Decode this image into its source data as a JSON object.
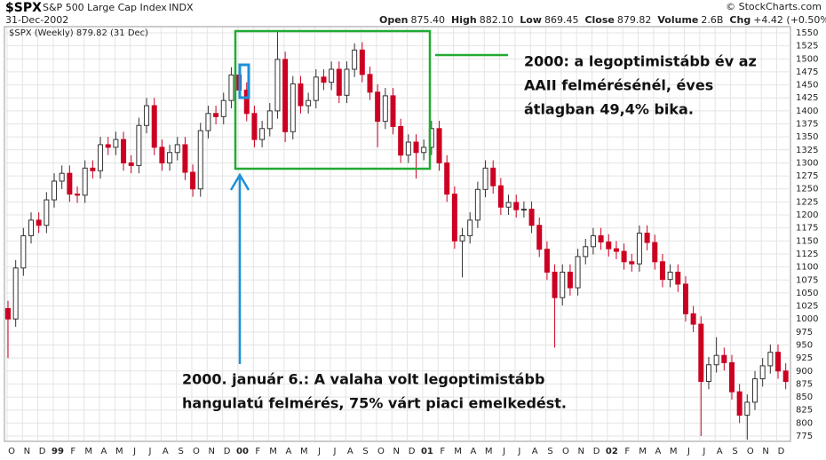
{
  "header": {
    "symbol": "$SPX",
    "name": "S&P 500 Large Cap Index",
    "exchange": "INDX",
    "date": "31-Dec-2002",
    "credit": "© StockCharts.com",
    "quote": [
      {
        "label": "Open",
        "value": "875.40"
      },
      {
        "label": "High",
        "value": "882.10"
      },
      {
        "label": "Low",
        "value": "869.45"
      },
      {
        "label": "Close",
        "value": "879.82"
      },
      {
        "label": "Volume",
        "value": "2.6B"
      },
      {
        "label": "Chg",
        "value": "+4.42 (+0.50%)"
      }
    ],
    "legend": "$SPX (Weekly) 879.82 (31 Dec)"
  },
  "chart_data": {
    "type": "candlestick",
    "x_labels": [
      "O",
      "N",
      "D",
      "99",
      "F",
      "M",
      "A",
      "M",
      "J",
      "J",
      "A",
      "S",
      "O",
      "N",
      "D",
      "00",
      "F",
      "M",
      "A",
      "M",
      "J",
      "J",
      "A",
      "S",
      "O",
      "N",
      "D",
      "01",
      "F",
      "M",
      "A",
      "M",
      "J",
      "J",
      "A",
      "S",
      "O",
      "N",
      "D",
      "02",
      "F",
      "M",
      "A",
      "M",
      "J",
      "J",
      "A",
      "S",
      "O",
      "N",
      "D"
    ],
    "open": [
      1020,
      1000,
      1098,
      1160,
      1190,
      1180,
      1229,
      1265,
      1280,
      1240,
      1238,
      1290,
      1285,
      1335,
      1330,
      1345,
      1300,
      1295,
      1372,
      1410,
      1330,
      1300,
      1320,
      1335,
      1282,
      1250,
      1362,
      1395,
      1389,
      1420,
      1469,
      1440,
      1395,
      1345,
      1366,
      1400,
      1499,
      1360,
      1452,
      1410,
      1420,
      1465,
      1455,
      1480,
      1430,
      1480,
      1517,
      1470,
      1436,
      1380,
      1429,
      1370,
      1315,
      1340,
      1320,
      1330,
      1366,
      1300,
      1240,
      1150,
      1160,
      1190,
      1249,
      1290,
      1256,
      1215,
      1224,
      1210,
      1211,
      1180,
      1134,
      1090,
      1041,
      1090,
      1060,
      1120,
      1139,
      1160,
      1148,
      1135,
      1130,
      1110,
      1106,
      1165,
      1147,
      1110,
      1076,
      1090,
      1067,
      1010,
      990,
      880,
      912,
      930,
      916,
      860,
      815,
      840,
      885,
      910,
      936,
      900
    ],
    "high": [
      1035,
      1113,
      1175,
      1205,
      1205,
      1244,
      1280,
      1295,
      1295,
      1255,
      1305,
      1305,
      1350,
      1350,
      1360,
      1360,
      1315,
      1387,
      1425,
      1425,
      1345,
      1335,
      1350,
      1350,
      1297,
      1377,
      1410,
      1410,
      1435,
      1484,
      1484,
      1455,
      1410,
      1381,
      1415,
      1552,
      1514,
      1467,
      1467,
      1435,
      1480,
      1480,
      1495,
      1495,
      1495,
      1530,
      1532,
      1485,
      1451,
      1444,
      1444,
      1385,
      1355,
      1355,
      1345,
      1381,
      1381,
      1315,
      1255,
      1175,
      1205,
      1264,
      1305,
      1305,
      1271,
      1239,
      1239,
      1226,
      1226,
      1195,
      1149,
      1105,
      1105,
      1105,
      1135,
      1154,
      1175,
      1175,
      1163,
      1150,
      1145,
      1125,
      1180,
      1180,
      1162,
      1125,
      1105,
      1105,
      1082,
      1025,
      1005,
      927,
      965,
      945,
      931,
      875,
      855,
      900,
      925,
      951,
      951,
      915
    ],
    "low": [
      925,
      985,
      1083,
      1145,
      1165,
      1165,
      1214,
      1250,
      1225,
      1223,
      1223,
      1270,
      1270,
      1315,
      1315,
      1285,
      1280,
      1280,
      1357,
      1315,
      1285,
      1285,
      1305,
      1267,
      1235,
      1235,
      1347,
      1374,
      1374,
      1405,
      1425,
      1380,
      1330,
      1330,
      1351,
      1385,
      1340,
      1345,
      1395,
      1395,
      1405,
      1440,
      1440,
      1415,
      1415,
      1465,
      1455,
      1421,
      1330,
      1365,
      1355,
      1300,
      1300,
      1270,
      1305,
      1315,
      1285,
      1225,
      1135,
      1080,
      1145,
      1175,
      1234,
      1241,
      1200,
      1200,
      1195,
      1195,
      1165,
      1119,
      1075,
      945,
      1026,
      1045,
      1045,
      1105,
      1124,
      1133,
      1120,
      1115,
      1095,
      1091,
      1091,
      1132,
      1095,
      1061,
      1061,
      1052,
      995,
      975,
      775,
      865,
      897,
      901,
      845,
      800,
      768,
      825,
      870,
      895,
      885,
      865
    ],
    "close": [
      1000,
      1098,
      1160,
      1190,
      1180,
      1229,
      1265,
      1280,
      1240,
      1238,
      1290,
      1285,
      1335,
      1330,
      1345,
      1300,
      1295,
      1372,
      1410,
      1330,
      1300,
      1320,
      1335,
      1282,
      1250,
      1362,
      1395,
      1389,
      1420,
      1469,
      1440,
      1395,
      1345,
      1366,
      1400,
      1499,
      1360,
      1452,
      1410,
      1420,
      1465,
      1455,
      1480,
      1430,
      1480,
      1517,
      1470,
      1436,
      1380,
      1429,
      1370,
      1315,
      1340,
      1320,
      1330,
      1366,
      1300,
      1240,
      1150,
      1160,
      1190,
      1249,
      1290,
      1256,
      1215,
      1224,
      1210,
      1211,
      1180,
      1134,
      1090,
      1041,
      1090,
      1060,
      1120,
      1139,
      1160,
      1148,
      1135,
      1130,
      1110,
      1106,
      1165,
      1147,
      1110,
      1076,
      1090,
      1067,
      1010,
      990,
      880,
      912,
      930,
      916,
      860,
      815,
      840,
      885,
      910,
      936,
      900,
      879.82
    ],
    "up_color": "#333333",
    "down_color": "#cc0022",
    "ylim": [
      775,
      1550
    ],
    "yticks": [
      775,
      800,
      825,
      850,
      875,
      900,
      925,
      950,
      975,
      1000,
      1025,
      1050,
      1075,
      1100,
      1125,
      1150,
      1175,
      1200,
      1225,
      1250,
      1275,
      1300,
      1325,
      1350,
      1375,
      1400,
      1425,
      1450,
      1475,
      1500,
      1525,
      1550
    ],
    "grid": true,
    "annotations": {
      "box_note": [
        "2000: a legoptimistább év az",
        "AAII felmérésénél, éves",
        "átlagban 49,4% bika."
      ],
      "arrow_note": [
        "2000. január 6.: A valaha volt legoptimistább",
        "hangulatú felmérés, 75% várt piaci emelkedést."
      ]
    }
  }
}
